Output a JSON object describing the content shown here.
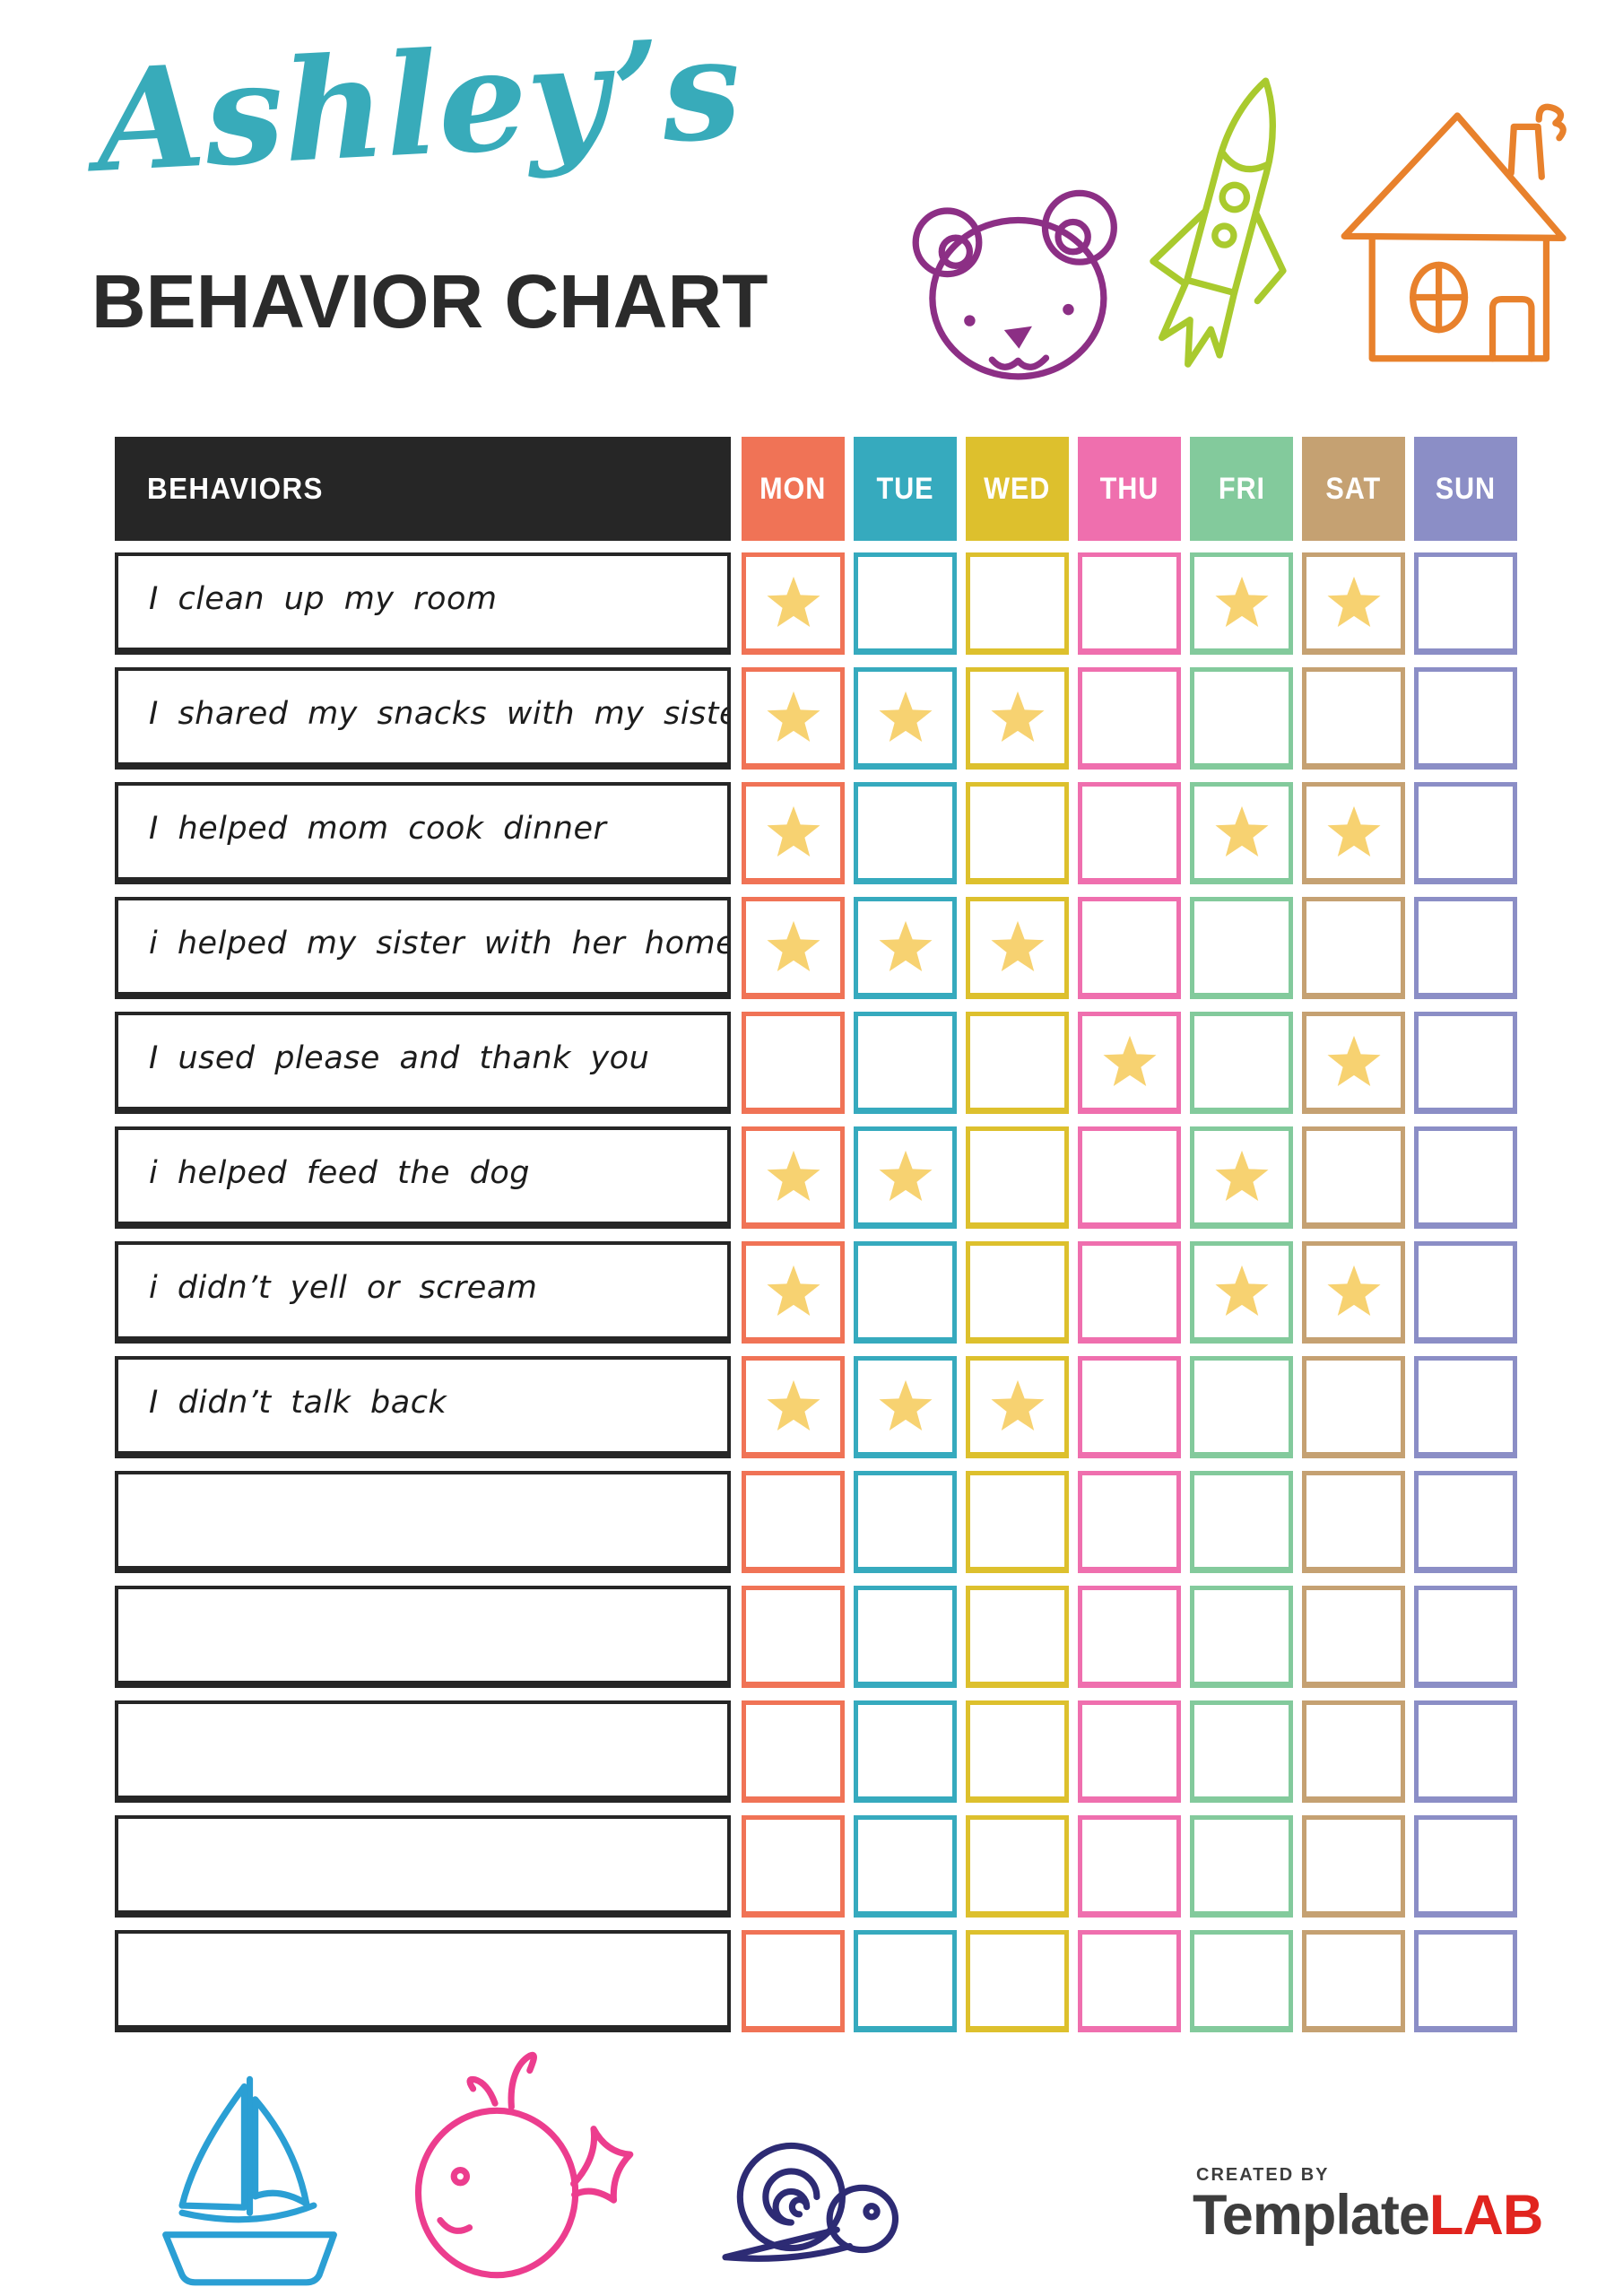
{
  "page": {
    "script_title": "Ashley’s",
    "main_title": "BEHAVIOR CHART"
  },
  "colors": {
    "accent_teal": "#38abba",
    "ink": "#2b2b2b",
    "header_bg": "#262626",
    "star": "#f7d271",
    "bear": "#8c2f85",
    "rocket": "#a9ca2e",
    "house": "#e8812c",
    "boat": "#2b9fd4",
    "whale": "#ec3d8e",
    "snail": "#2d2b74",
    "logo_gray": "#3d3d3d",
    "logo_red": "#e1251f"
  },
  "table": {
    "behaviors_header": "BEHAVIORS",
    "days": [
      {
        "label": "MON",
        "color": "#f07356"
      },
      {
        "label": "TUE",
        "color": "#36aabe"
      },
      {
        "label": "WED",
        "color": "#ddc02d"
      },
      {
        "label": "THU",
        "color": "#ef6fae"
      },
      {
        "label": "FRI",
        "color": "#83ca9c"
      },
      {
        "label": "SAT",
        "color": "#c5a172"
      },
      {
        "label": "SUN",
        "color": "#8b8ec6"
      }
    ],
    "rows": [
      {
        "label": "I clean up my room",
        "stars": [
          1,
          0,
          0,
          0,
          1,
          1,
          0
        ]
      },
      {
        "label": "I shared my snacks with my sister",
        "stars": [
          1,
          1,
          1,
          0,
          0,
          0,
          0
        ]
      },
      {
        "label": "I helped mom cook dinner",
        "stars": [
          1,
          0,
          0,
          0,
          1,
          1,
          0
        ]
      },
      {
        "label": "i helped my sister with her homework",
        "stars": [
          1,
          1,
          1,
          0,
          0,
          0,
          0
        ]
      },
      {
        "label": "I used please and thank you",
        "stars": [
          0,
          0,
          0,
          1,
          0,
          1,
          0
        ]
      },
      {
        "label": "i helped feed the dog",
        "stars": [
          1,
          1,
          0,
          0,
          1,
          0,
          0
        ]
      },
      {
        "label": "i didn’t yell or scream",
        "stars": [
          1,
          0,
          0,
          0,
          1,
          1,
          0
        ]
      },
      {
        "label": "I didn’t talk back",
        "stars": [
          1,
          1,
          1,
          0,
          0,
          0,
          0
        ]
      },
      {
        "label": "",
        "stars": [
          0,
          0,
          0,
          0,
          0,
          0,
          0
        ]
      },
      {
        "label": "",
        "stars": [
          0,
          0,
          0,
          0,
          0,
          0,
          0
        ]
      },
      {
        "label": "",
        "stars": [
          0,
          0,
          0,
          0,
          0,
          0,
          0
        ]
      },
      {
        "label": "",
        "stars": [
          0,
          0,
          0,
          0,
          0,
          0,
          0
        ]
      },
      {
        "label": "",
        "stars": [
          0,
          0,
          0,
          0,
          0,
          0,
          0
        ]
      }
    ]
  },
  "footer_logo": {
    "created_by": "CREATED BY",
    "brand_gray": "Template",
    "brand_red": "LAB"
  }
}
